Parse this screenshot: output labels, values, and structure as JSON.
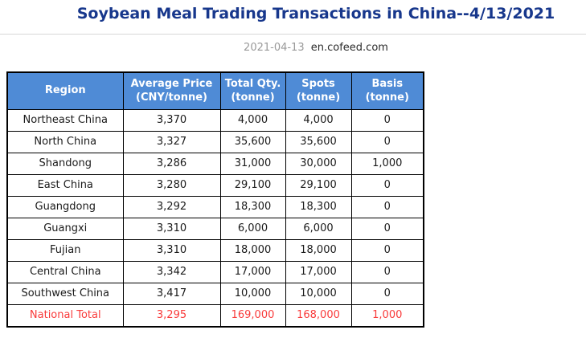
{
  "page": {
    "title": "Soybean Meal Trading Transactions in China--4/13/2021",
    "publish_date": "2021-04-13",
    "source": "en.cofeed.com"
  },
  "colors": {
    "title_color": "#17378C",
    "header_bg": "#4F8BD6",
    "total_red": "#F93B3B",
    "border_color": "#000000",
    "divider_gray": "#D8D8D8",
    "date_gray": "#999999",
    "source_color": "#2B2B2B"
  },
  "table": {
    "headers": [
      "Region",
      "Average Price\n(CNY/tonne)",
      "Total Qty.\n(tonne)",
      "Spots\n(tonne)",
      "Basis\n(tonne)"
    ],
    "rows": [
      {
        "region": "Northeast China",
        "avg_price": "3,370",
        "total_qty": "4,000",
        "spots": "4,000",
        "basis": "0"
      },
      {
        "region": "North China",
        "avg_price": "3,327",
        "total_qty": "35,600",
        "spots": "35,600",
        "basis": "0"
      },
      {
        "region": "Shandong",
        "avg_price": "3,286",
        "total_qty": "31,000",
        "spots": "30,000",
        "basis": "1,000"
      },
      {
        "region": "East China",
        "avg_price": "3,280",
        "total_qty": "29,100",
        "spots": "29,100",
        "basis": "0"
      },
      {
        "region": "Guangdong",
        "avg_price": "3,292",
        "total_qty": "18,300",
        "spots": "18,300",
        "basis": "0"
      },
      {
        "region": "Guangxi",
        "avg_price": "3,310",
        "total_qty": "6,000",
        "spots": "6,000",
        "basis": "0"
      },
      {
        "region": "Fujian",
        "avg_price": "3,310",
        "total_qty": "18,000",
        "spots": "18,000",
        "basis": "0"
      },
      {
        "region": "Central China",
        "avg_price": "3,342",
        "total_qty": "17,000",
        "spots": "17,000",
        "basis": "0"
      },
      {
        "region": "Southwest China",
        "avg_price": "3,417",
        "total_qty": "10,000",
        "spots": "10,000",
        "basis": "0"
      }
    ],
    "total_row": {
      "region": "National Total",
      "avg_price": "3,295",
      "total_qty": "169,000",
      "spots": "168,000",
      "basis": "1,000"
    }
  }
}
